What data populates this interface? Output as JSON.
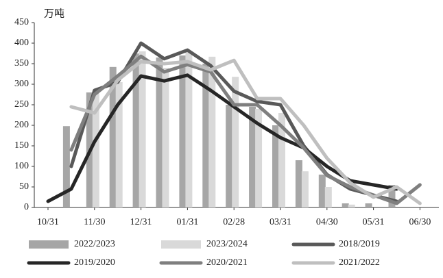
{
  "chart_data": {
    "type": "bar-line",
    "y_label": "万吨",
    "categories": [
      "10/31",
      null,
      "11/30",
      null,
      "12/31",
      null,
      "01/31",
      null,
      "02/28",
      null,
      "03/31",
      null,
      "04/30",
      null,
      "05/31",
      null,
      "06/30"
    ],
    "ylim": [
      0,
      450
    ],
    "yticks": [
      0,
      50,
      100,
      150,
      200,
      250,
      300,
      350,
      400,
      450
    ],
    "series": [
      {
        "name": "2022/2023",
        "type": "bar",
        "color": "#a6a6a6",
        "values": [
          null,
          198,
          280,
          342,
          375,
          365,
          370,
          350,
          250,
          245,
          200,
          115,
          80,
          10,
          10,
          55,
          null
        ]
      },
      {
        "name": "2023/2024",
        "type": "bar",
        "color": "#d9d9d9",
        "values": [
          null,
          null,
          285,
          305,
          380,
          340,
          378,
          367,
          318,
          240,
          230,
          88,
          50,
          7,
          null,
          null,
          null
        ]
      },
      {
        "name": "2018/2019",
        "type": "line",
        "color": "#595959",
        "values": [
          null,
          100,
          285,
          305,
          400,
          362,
          383,
          345,
          283,
          258,
          250,
          150,
          80,
          45,
          30,
          15,
          null
        ]
      },
      {
        "name": "2019/2020",
        "type": "line",
        "color": "#262626",
        "values": [
          15,
          45,
          160,
          250,
          320,
          308,
          322,
          285,
          245,
          205,
          170,
          145,
          100,
          65,
          55,
          45,
          null
        ]
      },
      {
        "name": "2020/2021",
        "type": "line",
        "color": "#7f7f7f",
        "values": [
          null,
          140,
          275,
          320,
          368,
          330,
          348,
          330,
          250,
          250,
          200,
          145,
          78,
          50,
          30,
          10,
          55
        ]
      },
      {
        "name": "2021/2022",
        "type": "line",
        "color": "#bfbfbf",
        "values": [
          null,
          245,
          230,
          310,
          355,
          350,
          355,
          335,
          358,
          265,
          265,
          200,
          120,
          60,
          25,
          50,
          10
        ]
      }
    ]
  }
}
